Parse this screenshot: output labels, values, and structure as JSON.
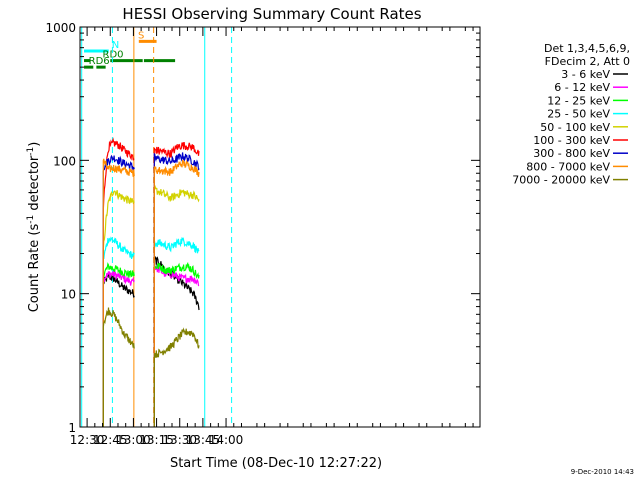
{
  "chart_data": {
    "type": "line",
    "title": "HESSI Observing Summary Count Rates",
    "xlabel": "Start Time (08-Dec-10 12:27:22)",
    "ylabel_main": "Count Rate (s",
    "ylabel_sup1": "-1",
    "ylabel_mid": " detector",
    "ylabel_sup2": "-1",
    "ylabel_end": ")",
    "footer": "9-Dec-2010 14:43",
    "yscale": "log",
    "ylim": [
      1,
      1000
    ],
    "xlim_minutes": [
      745.4,
      1004.5
    ],
    "yticks": [
      {
        "value": 1,
        "label": "1"
      },
      {
        "value": 10,
        "label": "10"
      },
      {
        "value": 100,
        "label": "100"
      },
      {
        "value": 1000,
        "label": "1000"
      }
    ],
    "xticks": [
      {
        "minutes": 750,
        "label": "12:30"
      },
      {
        "minutes": 765,
        "label": "12:45"
      },
      {
        "minutes": 780,
        "label": "13:00"
      },
      {
        "minutes": 795,
        "label": "13:15"
      },
      {
        "minutes": 810,
        "label": "13:30"
      },
      {
        "minutes": 825,
        "label": "13:45"
      },
      {
        "minutes": 840,
        "label": "14:00"
      }
    ],
    "legend": {
      "header": [
        "Det 1,3,4,5,6,9,",
        "FDecim 2, Att 0"
      ],
      "entries": [
        {
          "label": "3 - 6 keV",
          "color": "#000000"
        },
        {
          "label": "6 - 12 keV",
          "color": "#ff00ff"
        },
        {
          "label": "12 - 25 keV",
          "color": "#00ff00"
        },
        {
          "label": "25 - 50 keV",
          "color": "#00ffff"
        },
        {
          "label": "50 - 100 keV",
          "color": "#d2d200"
        },
        {
          "label": "100 - 300 keV",
          "color": "#ff0000"
        },
        {
          "label": "300 - 800 keV",
          "color": "#0000c8"
        },
        {
          "label": "800 - 7000 keV",
          "color": "#ff8c00"
        },
        {
          "label": "7000 - 20000 keV",
          "color": "#808000"
        }
      ]
    },
    "flags": [
      {
        "label": "N",
        "color": "#00ffff",
        "value": 660,
        "segments": [
          [
            748,
            764
          ]
        ],
        "label_at": 766
      },
      {
        "label": "S",
        "color": "#ff8c00",
        "value": 780,
        "segments": [
          [
            783.5,
            795
          ]
        ],
        "label_at": 783
      },
      {
        "label": "RD0",
        "color": "#008000",
        "value": 560,
        "segments": [
          [
            748,
            752
          ],
          [
            765,
            786
          ],
          [
            786.8,
            807
          ]
        ],
        "label_at": 760
      },
      {
        "label": "RD6",
        "color": "#008000",
        "value": 500,
        "segments": [
          [
            748,
            754
          ],
          [
            756,
            762
          ]
        ],
        "label_at": 751
      }
    ],
    "markers": [
      {
        "time": 746.5,
        "color": "#00ffff",
        "style": "solid"
      },
      {
        "time": 766.4,
        "color": "#00ffff",
        "style": "dashed"
      },
      {
        "time": 780.3,
        "color": "#ff8c00",
        "style": "solid"
      },
      {
        "time": 793.1,
        "color": "#ff8c00",
        "style": "dashed"
      },
      {
        "time": 826.2,
        "color": "#00ffff",
        "style": "solid"
      },
      {
        "time": 843.6,
        "color": "#00ffff",
        "style": "dashed"
      }
    ],
    "segments": [
      {
        "time_range": [
          760.5,
          780.5
        ],
        "values": {
          "3 - 6 keV": [
            12,
            13.5,
            13,
            12,
            11,
            10.5,
            10
          ],
          "6 - 12 keV": [
            13,
            14,
            14,
            13.5,
            13,
            12.5,
            12
          ],
          "12 - 25 keV": [
            14,
            16,
            15.5,
            15,
            14.5,
            14,
            14
          ],
          "25 - 50 keV": [
            18,
            26,
            25,
            23,
            21,
            20,
            19
          ],
          "50 - 100 keV": [
            21,
            48,
            60,
            55,
            52,
            50,
            48
          ],
          "100 - 300 keV": [
            42,
            125,
            135,
            130,
            120,
            112,
            105
          ],
          "300 - 800 keV": [
            88,
            100,
            105,
            100,
            95,
            92,
            88
          ],
          "800 - 7000 keV": [
            100,
            85,
            88,
            86,
            84,
            82,
            80
          ],
          "7000 - 20000 keV": [
            6,
            7.5,
            7,
            6,
            5,
            4.5,
            4
          ]
        }
      },
      {
        "time_range": [
          793.5,
          822.5
        ],
        "values": {
          "3 - 6 keV": [
            18,
            17,
            15,
            14,
            13,
            12,
            11,
            10,
            8
          ],
          "6 - 12 keV": [
            16,
            15,
            14,
            14,
            13.5,
            13,
            13,
            13,
            12
          ],
          "12 - 25 keV": [
            16,
            16,
            15,
            15,
            15.5,
            16,
            16,
            15,
            13
          ],
          "25 - 50 keV": [
            24,
            24,
            23,
            22,
            24,
            25,
            24,
            23,
            20
          ],
          "50 - 100 keV": [
            60,
            58,
            55,
            52,
            55,
            58,
            56,
            55,
            50
          ],
          "100 - 300 keV": [
            120,
            118,
            115,
            112,
            125,
            130,
            128,
            125,
            110
          ],
          "300 - 800 keV": [
            105,
            102,
            100,
            98,
            102,
            108,
            104,
            98,
            90
          ],
          "800 - 7000 keV": [
            85,
            84,
            83,
            82,
            90,
            95,
            92,
            88,
            80
          ],
          "7000 - 20000 keV": [
            3.5,
            3.6,
            3.8,
            4,
            4.5,
            5,
            5.2,
            5,
            4
          ]
        }
      }
    ]
  }
}
